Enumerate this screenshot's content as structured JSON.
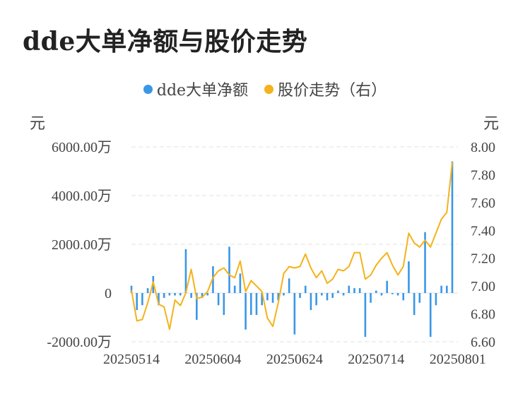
{
  "title": "dde大单净额与股价走势",
  "legend": {
    "left_label": "dde大单净额",
    "right_label": "股价走势（右）"
  },
  "units": {
    "left": "元",
    "right": "元"
  },
  "colors": {
    "bar": "#3a97e6",
    "line": "#f5b21a",
    "grid": "#e6e6e6"
  },
  "chart_data": {
    "type": "bar+line",
    "legend_placement": "top-center",
    "grid": true,
    "y_left": {
      "range": [
        -2000,
        6000
      ],
      "ticks": [
        -2000,
        0,
        2000,
        4000,
        6000
      ],
      "tick_labels": [
        "-2000.00万",
        "0",
        "2000.00万",
        "4000.00万",
        "6000.00万"
      ]
    },
    "y_right": {
      "range": [
        6.6,
        8.0
      ],
      "ticks": [
        6.6,
        6.8,
        7.0,
        7.2,
        7.4,
        7.6,
        7.8,
        8.0
      ],
      "tick_labels": [
        "6.60",
        "6.80",
        "7.00",
        "7.20",
        "7.40",
        "7.60",
        "7.80",
        "8.00"
      ]
    },
    "x_tick_labels": [
      {
        "index": 0,
        "label": "20250514"
      },
      {
        "index": 15,
        "label": "20250604"
      },
      {
        "index": 30,
        "label": "20250624"
      },
      {
        "index": 45,
        "label": "20250714"
      },
      {
        "index": 60,
        "label": "20250801"
      }
    ],
    "series": [
      {
        "name": "dde大单净额",
        "axis": "left",
        "values": [
          300,
          -700,
          -500,
          200,
          700,
          -500,
          -200,
          -100,
          -100,
          -100,
          1800,
          -200,
          -1100,
          -200,
          -100,
          1100,
          -500,
          -900,
          1900,
          300,
          800,
          -1500,
          -900,
          -900,
          -500,
          -300,
          -400,
          -300,
          -100,
          600,
          -1700,
          -200,
          300,
          -700,
          -500,
          -100,
          -300,
          -200,
          100,
          -100,
          300,
          200,
          200,
          -1800,
          -400,
          100,
          -100,
          500,
          -50,
          -100,
          -300,
          1300,
          -900,
          -400,
          2500,
          -1800,
          -500,
          300,
          300,
          5400
        ],
        "note_unit": "万"
      },
      {
        "name": "股价走势（右）",
        "axis": "right",
        "values": [
          6.97,
          6.75,
          6.76,
          6.88,
          7.03,
          6.87,
          6.85,
          6.69,
          6.9,
          6.86,
          6.95,
          7.12,
          6.91,
          6.92,
          6.96,
          7.06,
          7.11,
          7.13,
          7.08,
          7.06,
          7.18,
          6.96,
          7.04,
          7.0,
          6.96,
          6.77,
          6.71,
          6.88,
          7.09,
          7.14,
          7.13,
          7.14,
          7.23,
          7.13,
          7.06,
          7.11,
          7.02,
          7.05,
          7.12,
          7.11,
          7.14,
          7.24,
          7.24,
          7.05,
          7.08,
          7.15,
          7.2,
          7.24,
          7.15,
          7.08,
          7.14,
          7.38,
          7.31,
          7.28,
          7.33,
          7.28,
          7.38,
          7.48,
          7.53,
          7.89
        ]
      }
    ]
  }
}
